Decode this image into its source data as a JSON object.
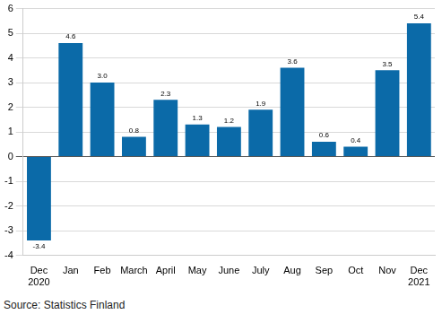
{
  "chart_data": {
    "type": "bar",
    "categories": [
      "Dec\n2020",
      "Jan",
      "Feb",
      "March",
      "April",
      "May",
      "June",
      "July",
      "Aug",
      "Sep",
      "Oct",
      "Nov",
      "Dec\n2021"
    ],
    "values": [
      -3.4,
      4.6,
      3.0,
      0.8,
      2.3,
      1.3,
      1.2,
      1.9,
      3.6,
      0.6,
      0.4,
      3.5,
      5.4
    ],
    "value_labels": [
      "-3.4",
      "4.6",
      "3.0",
      "0.8",
      "2.3",
      "1.3",
      "1.2",
      "1.9",
      "3.6",
      "0.6",
      "0.4",
      "3.5",
      "5.4"
    ],
    "data_labels": true,
    "color": "#0b6aa8",
    "ylim": [
      -4,
      6
    ],
    "yticks": [
      -4,
      -3,
      -2,
      -1,
      0,
      1,
      2,
      3,
      4,
      5,
      6
    ],
    "grid": true,
    "source": "Source: Statistics Finland"
  }
}
